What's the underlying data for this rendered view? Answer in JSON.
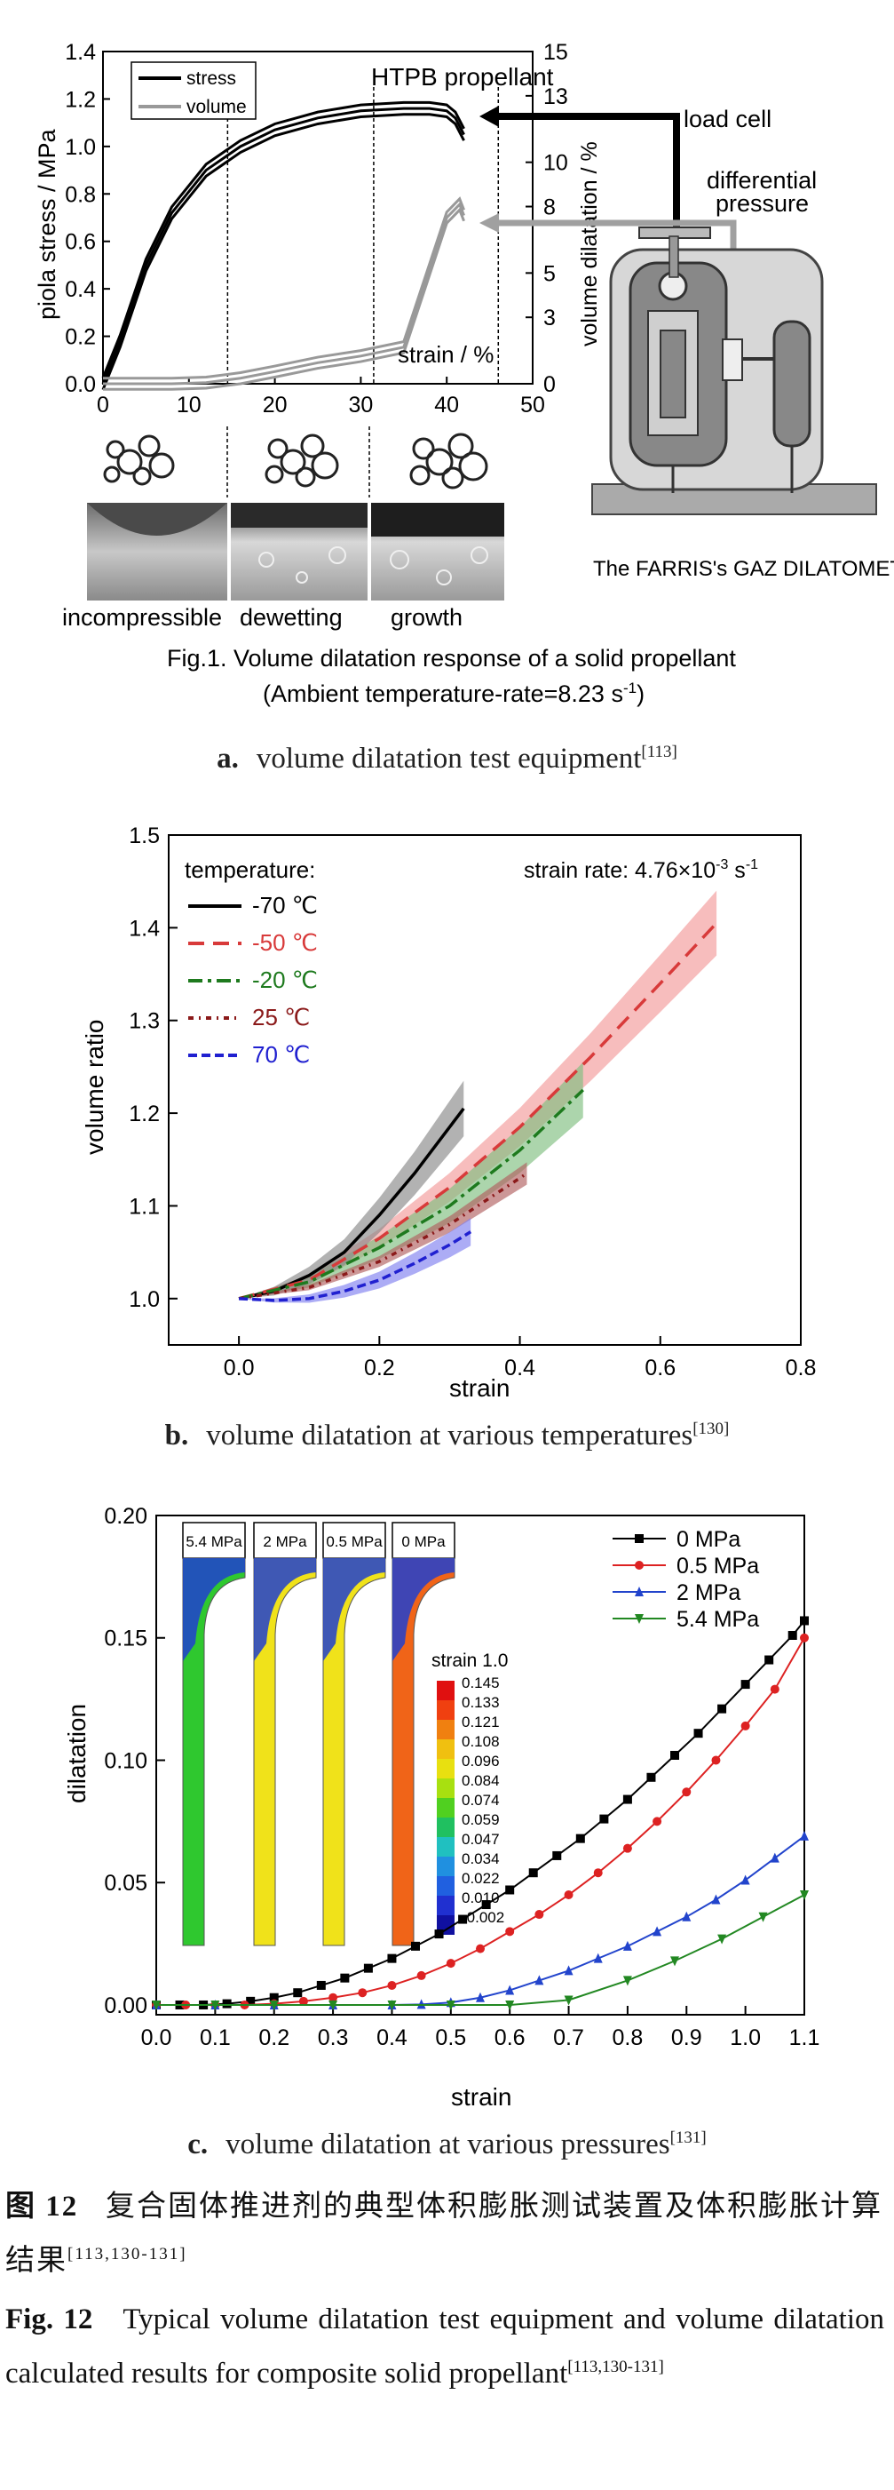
{
  "panel_a": {
    "chart_data": {
      "type": "line",
      "xlabel": "strain / %",
      "ylabel": "piola stress / MPa",
      "y2label": "volume dilatation / %",
      "xlim": [
        0,
        50
      ],
      "ylim": [
        0,
        1.4
      ],
      "y2lim": [
        0,
        15
      ],
      "x_ticks": [
        "0",
        "10",
        "20",
        "30",
        "40",
        "50"
      ],
      "y_ticks": [
        "0.0",
        "0.2",
        "0.4",
        "0.6",
        "0.8",
        "1.0",
        "1.2",
        "1.4"
      ],
      "y2_ticks": [
        "0",
        "3",
        "5",
        "8",
        "10",
        "13",
        "15"
      ],
      "legend": [
        "stress",
        "volume"
      ],
      "stage_boundaries_x": [
        14.5,
        31.5,
        46
      ],
      "series": [
        {
          "name": "stress",
          "color": "#000000",
          "x": [
            0,
            2,
            5,
            8,
            12,
            16,
            20,
            25,
            30,
            35,
            38,
            40,
            41,
            42
          ],
          "y": [
            0,
            0.18,
            0.5,
            0.72,
            0.9,
            1.0,
            1.07,
            1.12,
            1.15,
            1.16,
            1.16,
            1.15,
            1.12,
            1.05
          ]
        },
        {
          "name": "volume",
          "color": "#999999",
          "x": [
            0,
            8,
            12,
            16,
            20,
            25,
            30,
            35,
            40,
            41.5,
            42
          ],
          "y": [
            0,
            0.0,
            0.05,
            0.25,
            0.55,
            0.95,
            1.25,
            1.65,
            7.5,
            8.1,
            7.6
          ]
        }
      ],
      "annotations": [
        "HTPB propellant",
        "load cell",
        "differential pressure"
      ],
      "stages": [
        "incompressible",
        "dewetting",
        "growth"
      ]
    },
    "device_label": "The FARRIS's GAZ DILATOMETER",
    "fig_title_line1": "Fig.1. Volume dilatation response of a solid propellant",
    "fig_title_line2": "(Ambient temperature-rate=8.23 s",
    "fig_title_sup": "-1",
    "fig_title_end": ")",
    "sub_letter": "a.",
    "sub_text": "volume dilatation test equipment",
    "sub_ref": "[113]",
    "colors": {
      "stress": "#000000",
      "volume": "#999999"
    }
  },
  "panel_b": {
    "chart_data": {
      "type": "line",
      "xlabel": "strain",
      "ylabel": "volume ratio",
      "xlim": [
        -0.1,
        0.8
      ],
      "ylim": [
        0.95,
        1.5
      ],
      "x_ticks": [
        "0.0",
        "0.2",
        "0.4",
        "0.6",
        "0.8"
      ],
      "y_ticks": [
        "1.0",
        "1.1",
        "1.2",
        "1.3",
        "1.4",
        "1.5"
      ],
      "legend_title": "temperature:",
      "annotation": "strain rate: 4.76×10",
      "annotation_sup": "-3",
      "annotation_unit": " s",
      "annotation_unit_sup": "-1",
      "series": [
        {
          "name": "-70 ℃",
          "color": "#000000",
          "band": "#888888",
          "x": [
            0,
            0.05,
            0.1,
            0.15,
            0.2,
            0.25,
            0.3,
            0.32
          ],
          "y": [
            1.0,
            1.008,
            1.025,
            1.05,
            1.09,
            1.135,
            1.185,
            1.205
          ],
          "half_width": 0.03
        },
        {
          "name": "-50 ℃",
          "color": "#d83a3a",
          "band": "#f29a9a",
          "x": [
            0,
            0.1,
            0.2,
            0.3,
            0.4,
            0.5,
            0.6,
            0.68
          ],
          "y": [
            1.0,
            1.02,
            1.065,
            1.12,
            1.185,
            1.26,
            1.34,
            1.405
          ],
          "half_width": 0.035
        },
        {
          "name": "-20 ℃",
          "color": "#1e7a1e",
          "band": "#7fbf7f",
          "x": [
            0,
            0.1,
            0.2,
            0.3,
            0.4,
            0.49
          ],
          "y": [
            1.0,
            1.018,
            1.055,
            1.1,
            1.16,
            1.225
          ],
          "half_width": 0.03
        },
        {
          "name": "25 ℃",
          "color": "#8b1a1a",
          "band": "#b06060",
          "x": [
            0,
            0.1,
            0.2,
            0.3,
            0.41
          ],
          "y": [
            1.0,
            1.012,
            1.04,
            1.08,
            1.135
          ],
          "half_width": 0.012
        },
        {
          "name": "70 ℃",
          "color": "#2020d0",
          "band": "#8080f0",
          "x": [
            0,
            0.05,
            0.1,
            0.15,
            0.2,
            0.25,
            0.3,
            0.33
          ],
          "y": [
            1.0,
            0.998,
            1.0,
            1.008,
            1.02,
            1.038,
            1.058,
            1.072
          ],
          "half_width": 0.015
        }
      ]
    },
    "sub_letter": "b.",
    "sub_text": "volume dilatation at various temperatures",
    "sub_ref": "[130]"
  },
  "panel_c": {
    "chart_data": {
      "type": "line",
      "xlabel": "strain",
      "ylabel": "dilatation",
      "xlim": [
        0.0,
        1.1
      ],
      "ylim": [
        -0.004,
        0.2
      ],
      "x_ticks": [
        "0.0",
        "0.1",
        "0.2",
        "0.3",
        "0.4",
        "0.5",
        "0.6",
        "0.7",
        "0.8",
        "0.9",
        "1.0",
        "1.1"
      ],
      "y_ticks": [
        "0.00",
        "0.05",
        "0.10",
        "0.15",
        "0.20"
      ],
      "series": [
        {
          "name": "0 MPa",
          "color": "#000000",
          "marker": "square",
          "x": [
            0.0,
            0.04,
            0.08,
            0.12,
            0.16,
            0.2,
            0.24,
            0.28,
            0.32,
            0.36,
            0.4,
            0.44,
            0.48,
            0.52,
            0.56,
            0.6,
            0.64,
            0.68,
            0.72,
            0.76,
            0.8,
            0.84,
            0.88,
            0.92,
            0.96,
            1.0,
            1.04,
            1.08,
            1.1
          ],
          "y": [
            0.0,
            0.0,
            0.0,
            0.0005,
            0.0015,
            0.003,
            0.005,
            0.008,
            0.011,
            0.015,
            0.019,
            0.024,
            0.029,
            0.035,
            0.041,
            0.047,
            0.054,
            0.061,
            0.068,
            0.076,
            0.084,
            0.093,
            0.102,
            0.111,
            0.121,
            0.131,
            0.141,
            0.151,
            0.157
          ]
        },
        {
          "name": "0.5 MPa",
          "color": "#dd2222",
          "marker": "circle",
          "x": [
            0.0,
            0.05,
            0.1,
            0.15,
            0.2,
            0.25,
            0.3,
            0.35,
            0.4,
            0.45,
            0.5,
            0.55,
            0.6,
            0.65,
            0.7,
            0.75,
            0.8,
            0.85,
            0.9,
            0.95,
            1.0,
            1.05,
            1.1
          ],
          "y": [
            0.0,
            0.0,
            0.0,
            0.0,
            0.0005,
            0.0015,
            0.003,
            0.005,
            0.008,
            0.012,
            0.017,
            0.023,
            0.03,
            0.037,
            0.045,
            0.054,
            0.064,
            0.075,
            0.087,
            0.1,
            0.114,
            0.129,
            0.15
          ]
        },
        {
          "name": "2 MPa",
          "color": "#2244cc",
          "marker": "triangle",
          "x": [
            0.0,
            0.1,
            0.2,
            0.3,
            0.4,
            0.45,
            0.5,
            0.55,
            0.6,
            0.65,
            0.7,
            0.75,
            0.8,
            0.85,
            0.9,
            0.95,
            1.0,
            1.05,
            1.1
          ],
          "y": [
            0.0,
            0.0,
            0.0,
            0.0,
            0.0,
            0.0002,
            0.001,
            0.003,
            0.006,
            0.01,
            0.014,
            0.019,
            0.024,
            0.03,
            0.036,
            0.043,
            0.051,
            0.06,
            0.069
          ]
        },
        {
          "name": "5.4 MPa",
          "color": "#228822",
          "marker": "triangle-down",
          "x": [
            0.0,
            0.1,
            0.2,
            0.3,
            0.4,
            0.5,
            0.6,
            0.7,
            0.8,
            0.88,
            0.96,
            1.03,
            1.1
          ],
          "y": [
            0.0,
            0.0,
            0.0,
            0.0,
            0.0,
            0.0,
            0.0,
            0.002,
            0.01,
            0.018,
            0.027,
            0.036,
            0.045
          ]
        }
      ]
    },
    "inset_labels": [
      "5.4 MPa",
      "2 MPa",
      "0.5 MPa",
      "0 MPa"
    ],
    "inset_colors": [
      "#2fc82f",
      "#f0e21a",
      "#f0e21a",
      "#f06418"
    ],
    "colorbar_title": "strain 1.0",
    "colorbar_values": [
      "0.145",
      "0.133",
      "0.121",
      "0.108",
      "0.096",
      "0.084",
      "0.074",
      "0.059",
      "0.047",
      "0.034",
      "0.022",
      "0.010",
      "-0.002"
    ],
    "colorbar_colors": [
      "#e01010",
      "#f04010",
      "#f08010",
      "#f0c010",
      "#e8e010",
      "#a8e010",
      "#50d020",
      "#20c060",
      "#20c0c0",
      "#2090e0",
      "#2060e0",
      "#2030d0",
      "#1010a0"
    ],
    "sub_letter": "c.",
    "sub_text": "volume dilatation at various pressures",
    "sub_ref": "[131]"
  },
  "caption": {
    "zh_label": "图 12",
    "zh_text": "复合固体推进剂的典型体积膨胀测试装置及体积膨胀计算结果",
    "zh_ref": "[113,130-131]",
    "en_label": "Fig. 12",
    "en_text": "Typical volume dilatation test equipment and volume dilatation calculated results for composite solid propellant",
    "en_ref": "[113,130-131]"
  }
}
